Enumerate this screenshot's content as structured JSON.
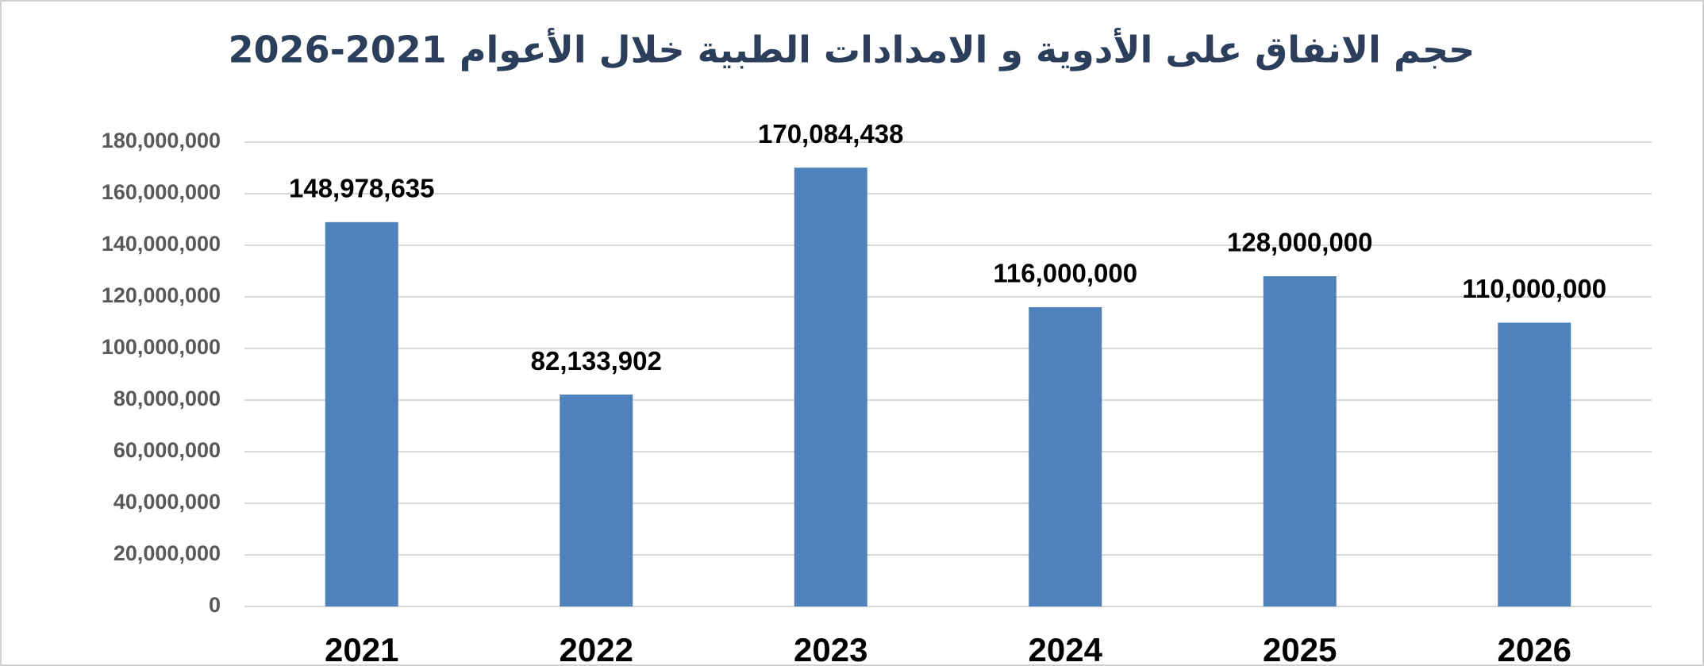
{
  "chart_data": {
    "type": "bar",
    "title": "حجم الانفاق على الأدوية و الامدادات الطبية خلال الأعوام 2021-2026",
    "categories": [
      "2021",
      "2022",
      "2023",
      "2024",
      "2025",
      "2026"
    ],
    "values": [
      148978635,
      82133902,
      170084438,
      116000000,
      128000000,
      110000000
    ],
    "value_labels": [
      "148,978,635",
      "82,133,902",
      "170,084,438",
      "116,000,000",
      "128,000,000",
      "110,000,000"
    ],
    "color": "#4f81bd",
    "ylim": [
      0,
      180000000
    ],
    "yticks": [
      0,
      {
        "value": 20000000,
        "label": "20,000,000"
      },
      {
        "value": 40000000,
        "label": "40,000,000"
      },
      {
        "value": 60000000,
        "label": "60,000,000"
      },
      {
        "value": 80000000,
        "label": "80,000,000"
      },
      {
        "value": 100000000,
        "label": "100,000,000"
      },
      {
        "value": 120000000,
        "label": "120,000,000"
      },
      {
        "value": 140000000,
        "label": "140,000,000"
      },
      {
        "value": 160000000,
        "label": "160,000,000"
      },
      {
        "value": 180000000,
        "label": "180,000,000"
      }
    ],
    "grid": true
  }
}
